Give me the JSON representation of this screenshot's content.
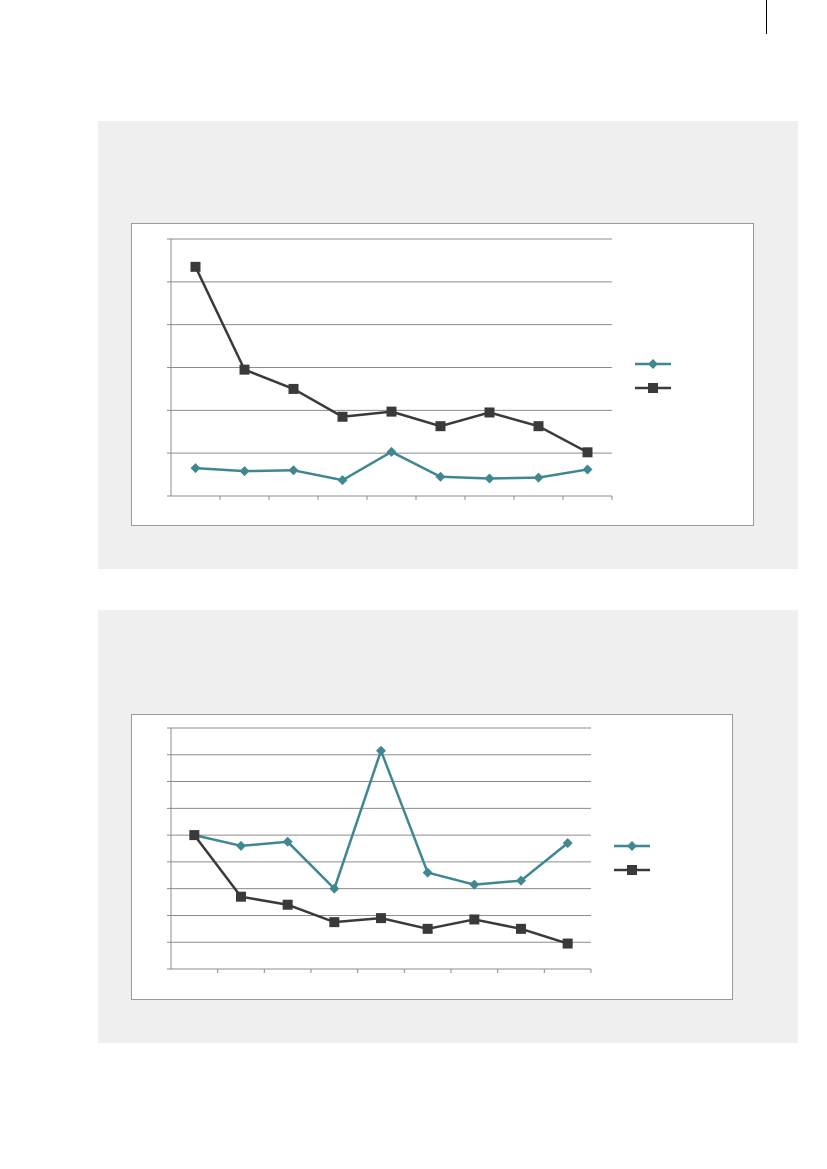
{
  "colors": {
    "panel_bg": "#efefef",
    "series_teal": "#3f8791",
    "series_dark": "#3a3a3a",
    "grid": "#8c8c8c"
  },
  "chart_data": [
    {
      "type": "line",
      "title": "",
      "xlabel": "",
      "ylabel": "",
      "x": [
        1,
        2,
        3,
        4,
        5,
        6,
        7,
        8,
        9
      ],
      "ylim": [
        0,
        6
      ],
      "grid": true,
      "legend": "right",
      "series": [
        {
          "marker": "diamond",
          "color": "#3f8791",
          "values": [
            0.65,
            0.58,
            0.6,
            0.37,
            1.03,
            0.45,
            0.41,
            0.43,
            0.62
          ]
        },
        {
          "marker": "square",
          "color": "#3a3a3a",
          "values": [
            5.35,
            2.95,
            2.5,
            1.85,
            1.97,
            1.63,
            1.95,
            1.63,
            1.02
          ]
        }
      ]
    },
    {
      "type": "line",
      "title": "",
      "xlabel": "",
      "ylabel": "",
      "x": [
        1,
        2,
        3,
        4,
        5,
        6,
        7,
        8,
        9
      ],
      "ylim": [
        0,
        9
      ],
      "grid": true,
      "legend": "right",
      "series": [
        {
          "marker": "diamond",
          "color": "#3f8791",
          "values": [
            5.0,
            4.6,
            4.75,
            3.0,
            8.15,
            3.6,
            3.15,
            3.3,
            4.7
          ]
        },
        {
          "marker": "square",
          "color": "#3a3a3a",
          "values": [
            5.0,
            2.7,
            2.4,
            1.75,
            1.9,
            1.5,
            1.85,
            1.5,
            0.95
          ]
        }
      ]
    }
  ]
}
